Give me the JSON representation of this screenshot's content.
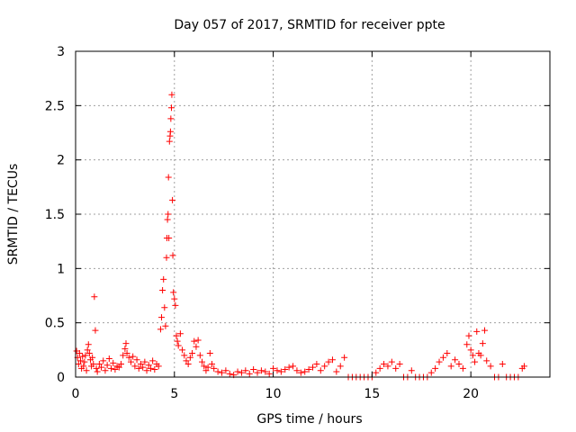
{
  "chart_data": {
    "type": "scatter",
    "title": "Day 057 of 2017, SRMTID for receiver ppte",
    "xlabel": "GPS time / hours",
    "ylabel": "SRMTID / TECUs",
    "xlim": [
      0,
      24
    ],
    "ylim": [
      0,
      3
    ],
    "xticks": [
      "0",
      "5",
      "10",
      "15",
      "20"
    ],
    "yticks": [
      "0",
      "0.5",
      "1",
      "1.5",
      "2",
      "2.5",
      "3"
    ],
    "grid": true,
    "marker": "plus",
    "color": "#ff0000",
    "series": [
      {
        "name": "SRMTID",
        "points": [
          [
            0.05,
            0.24
          ],
          [
            0.1,
            0.18
          ],
          [
            0.15,
            0.12
          ],
          [
            0.2,
            0.22
          ],
          [
            0.25,
            0.15
          ],
          [
            0.3,
            0.08
          ],
          [
            0.35,
            0.19
          ],
          [
            0.4,
            0.1
          ],
          [
            0.45,
            0.14
          ],
          [
            0.5,
            0.2
          ],
          [
            0.55,
            0.06
          ],
          [
            0.6,
            0.25
          ],
          [
            0.65,
            0.3
          ],
          [
            0.7,
            0.22
          ],
          [
            0.75,
            0.16
          ],
          [
            0.8,
            0.1
          ],
          [
            0.85,
            0.18
          ],
          [
            0.9,
            0.12
          ],
          [
            0.95,
            0.74
          ],
          [
            1.0,
            0.43
          ],
          [
            1.05,
            0.08
          ],
          [
            1.1,
            0.05
          ],
          [
            1.2,
            0.12
          ],
          [
            1.3,
            0.09
          ],
          [
            1.4,
            0.15
          ],
          [
            1.5,
            0.06
          ],
          [
            1.6,
            0.11
          ],
          [
            1.7,
            0.17
          ],
          [
            1.8,
            0.08
          ],
          [
            1.9,
            0.13
          ],
          [
            2.0,
            0.07
          ],
          [
            2.1,
            0.1
          ],
          [
            2.2,
            0.09
          ],
          [
            2.3,
            0.12
          ],
          [
            2.4,
            0.2
          ],
          [
            2.5,
            0.26
          ],
          [
            2.55,
            0.31
          ],
          [
            2.6,
            0.22
          ],
          [
            2.7,
            0.18
          ],
          [
            2.8,
            0.14
          ],
          [
            2.9,
            0.19
          ],
          [
            3.0,
            0.1
          ],
          [
            3.1,
            0.16
          ],
          [
            3.2,
            0.08
          ],
          [
            3.3,
            0.12
          ],
          [
            3.4,
            0.09
          ],
          [
            3.5,
            0.14
          ],
          [
            3.6,
            0.06
          ],
          [
            3.7,
            0.11
          ],
          [
            3.8,
            0.08
          ],
          [
            3.9,
            0.15
          ],
          [
            4.0,
            0.07
          ],
          [
            4.1,
            0.12
          ],
          [
            4.2,
            0.1
          ],
          [
            4.3,
            0.44
          ],
          [
            4.35,
            0.55
          ],
          [
            4.4,
            0.8
          ],
          [
            4.45,
            0.9
          ],
          [
            4.5,
            0.64
          ],
          [
            4.55,
            0.47
          ],
          [
            4.6,
            1.1
          ],
          [
            4.62,
            1.28
          ],
          [
            4.65,
            1.45
          ],
          [
            4.68,
            1.5
          ],
          [
            4.7,
            1.84
          ],
          [
            4.72,
            1.28
          ],
          [
            4.75,
            2.17
          ],
          [
            4.78,
            2.22
          ],
          [
            4.8,
            2.26
          ],
          [
            4.82,
            2.38
          ],
          [
            4.85,
            2.48
          ],
          [
            4.87,
            2.6
          ],
          [
            4.9,
            1.63
          ],
          [
            4.92,
            1.12
          ],
          [
            4.95,
            0.78
          ],
          [
            5.0,
            0.72
          ],
          [
            5.05,
            0.66
          ],
          [
            5.1,
            0.38
          ],
          [
            5.15,
            0.33
          ],
          [
            5.2,
            0.29
          ],
          [
            5.3,
            0.4
          ],
          [
            5.4,
            0.25
          ],
          [
            5.5,
            0.2
          ],
          [
            5.6,
            0.15
          ],
          [
            5.7,
            0.12
          ],
          [
            5.8,
            0.18
          ],
          [
            5.9,
            0.22
          ],
          [
            6.0,
            0.33
          ],
          [
            6.1,
            0.28
          ],
          [
            6.2,
            0.34
          ],
          [
            6.3,
            0.2
          ],
          [
            6.4,
            0.14
          ],
          [
            6.5,
            0.1
          ],
          [
            6.6,
            0.06
          ],
          [
            6.7,
            0.09
          ],
          [
            6.8,
            0.22
          ],
          [
            6.9,
            0.12
          ],
          [
            7.0,
            0.08
          ],
          [
            7.2,
            0.05
          ],
          [
            7.4,
            0.04
          ],
          [
            7.6,
            0.06
          ],
          [
            7.8,
            0.03
          ],
          [
            8.0,
            0.02
          ],
          [
            8.2,
            0.05
          ],
          [
            8.4,
            0.04
          ],
          [
            8.6,
            0.06
          ],
          [
            8.8,
            0.03
          ],
          [
            9.0,
            0.07
          ],
          [
            9.2,
            0.04
          ],
          [
            9.4,
            0.06
          ],
          [
            9.6,
            0.05
          ],
          [
            9.8,
            0.03
          ],
          [
            10.0,
            0.08
          ],
          [
            10.2,
            0.06
          ],
          [
            10.4,
            0.05
          ],
          [
            10.6,
            0.07
          ],
          [
            10.8,
            0.09
          ],
          [
            11.0,
            0.1
          ],
          [
            11.2,
            0.06
          ],
          [
            11.4,
            0.04
          ],
          [
            11.6,
            0.05
          ],
          [
            11.8,
            0.07
          ],
          [
            12.0,
            0.09
          ],
          [
            12.2,
            0.12
          ],
          [
            12.4,
            0.06
          ],
          [
            12.6,
            0.1
          ],
          [
            12.8,
            0.14
          ],
          [
            13.0,
            0.16
          ],
          [
            13.2,
            0.05
          ],
          [
            13.4,
            0.1
          ],
          [
            13.6,
            0.18
          ],
          [
            13.8,
            0.0
          ],
          [
            14.0,
            0.0
          ],
          [
            14.2,
            0.0
          ],
          [
            14.4,
            0.0
          ],
          [
            14.6,
            0.0
          ],
          [
            14.8,
            0.0
          ],
          [
            15.0,
            0.0
          ],
          [
            15.2,
            0.04
          ],
          [
            15.4,
            0.08
          ],
          [
            15.6,
            0.12
          ],
          [
            15.8,
            0.1
          ],
          [
            16.0,
            0.14
          ],
          [
            16.2,
            0.08
          ],
          [
            16.4,
            0.12
          ],
          [
            16.6,
            0.0
          ],
          [
            16.8,
            0.0
          ],
          [
            17.0,
            0.06
          ],
          [
            17.2,
            0.0
          ],
          [
            17.4,
            0.0
          ],
          [
            17.6,
            0.0
          ],
          [
            17.8,
            0.0
          ],
          [
            18.0,
            0.04
          ],
          [
            18.2,
            0.08
          ],
          [
            18.4,
            0.14
          ],
          [
            18.6,
            0.18
          ],
          [
            18.8,
            0.22
          ],
          [
            19.0,
            0.1
          ],
          [
            19.2,
            0.16
          ],
          [
            19.4,
            0.12
          ],
          [
            19.6,
            0.08
          ],
          [
            19.8,
            0.3
          ],
          [
            19.9,
            0.38
          ],
          [
            20.0,
            0.25
          ],
          [
            20.1,
            0.2
          ],
          [
            20.2,
            0.14
          ],
          [
            20.3,
            0.42
          ],
          [
            20.4,
            0.22
          ],
          [
            20.5,
            0.2
          ],
          [
            20.6,
            0.31
          ],
          [
            20.7,
            0.43
          ],
          [
            20.8,
            0.15
          ],
          [
            21.0,
            0.1
          ],
          [
            21.2,
            0.0
          ],
          [
            21.4,
            0.0
          ],
          [
            21.6,
            0.12
          ],
          [
            21.8,
            0.0
          ],
          [
            22.0,
            0.0
          ],
          [
            22.2,
            0.0
          ],
          [
            22.4,
            0.0
          ],
          [
            22.6,
            0.08
          ],
          [
            22.7,
            0.1
          ]
        ]
      }
    ]
  }
}
